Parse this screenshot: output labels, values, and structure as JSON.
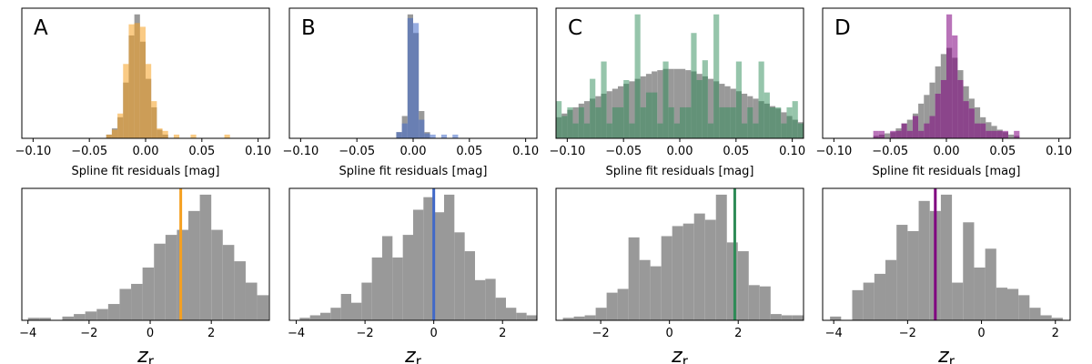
{
  "colors": {
    "background_hist": "#999999",
    "A": "#f5a020",
    "B": "#4169c8",
    "C": "#2e8b57",
    "D": "#800080"
  },
  "chart_data": [
    {
      "type": "histogram",
      "panel": "A",
      "label": "A",
      "xlabel": "Spline fit residuals [mag]",
      "xlim": [
        -0.11,
        0.11
      ],
      "xticks": [
        "−0.10",
        "−0.05",
        "0.00",
        "0.05",
        "0.10"
      ],
      "xtick_values": [
        -0.1,
        -0.05,
        0.0,
        0.05,
        0.1
      ],
      "ylim": [
        0,
        1.05
      ],
      "yticks": "none",
      "bin_start": -0.035,
      "bin_width": 0.005,
      "series": [
        {
          "values": [
            0.03,
            0.08,
            0.17,
            0.45,
            0.83,
            1.0,
            0.78,
            0.48,
            0.25,
            0.07,
            0.03
          ]
        },
        {
          "values": [
            0.03,
            0.07,
            0.2,
            0.6,
            0.92,
            0.93,
            0.9,
            0.6,
            0.3,
            0.08,
            0.06,
            0,
            0.03,
            0,
            0,
            0.03,
            0,
            0,
            0,
            0,
            0,
            0.03
          ]
        }
      ]
    },
    {
      "type": "histogram",
      "panel": "B",
      "label": "B",
      "xlabel": "Spline fit residuals [mag]",
      "xlim": [
        -0.11,
        0.11
      ],
      "xticks": [
        "−0.10",
        "−0.05",
        "0.00",
        "0.05",
        "0.10"
      ],
      "xtick_values": [
        -0.1,
        -0.05,
        0.0,
        0.05,
        0.1
      ],
      "ylim": [
        0,
        1.05
      ],
      "yticks": "none",
      "bin_start": -0.015,
      "bin_width": 0.005,
      "series": [
        {
          "values": [
            0.05,
            0.18,
            1.0,
            0.85,
            0.22,
            0.05
          ]
        },
        {
          "values": [
            0.05,
            0.12,
            0.97,
            0.93,
            0.15,
            0.04,
            0.03,
            0,
            0.03,
            0,
            0.03
          ]
        }
      ]
    },
    {
      "type": "histogram",
      "panel": "C",
      "label": "C",
      "xlabel": "Spline fit residuals [mag]",
      "xlim": [
        -0.11,
        0.11
      ],
      "xticks": [
        "−0.10",
        "−0.05",
        "0.00",
        "0.05",
        "0.10"
      ],
      "xtick_values": [
        -0.1,
        -0.05,
        0.0,
        0.05,
        0.1
      ],
      "ylim": [
        0,
        1.05
      ],
      "yticks": "none",
      "bin_start": -0.11,
      "bin_width": 0.005,
      "series": [
        {
          "values": [
            0.17,
            0.2,
            0.23,
            0.25,
            0.28,
            0.3,
            0.32,
            0.34,
            0.36,
            0.38,
            0.4,
            0.42,
            0.44,
            0.46,
            0.48,
            0.5,
            0.52,
            0.54,
            0.55,
            0.56,
            0.56,
            0.56,
            0.56,
            0.55,
            0.54,
            0.52,
            0.5,
            0.48,
            0.46,
            0.44,
            0.42,
            0.4,
            0.38,
            0.36,
            0.34,
            0.32,
            0.3,
            0.28,
            0.26,
            0.24,
            0.21,
            0.18,
            0.15,
            0.13
          ]
        },
        {
          "values": [
            0.3,
            0.18,
            0.25,
            0.12,
            0.25,
            0.12,
            0.48,
            0.25,
            0.62,
            0.12,
            0.25,
            0.25,
            0.47,
            0.12,
            1.0,
            0.25,
            0.37,
            0.37,
            0.12,
            0.62,
            0.25,
            0.12,
            0.25,
            0.25,
            0.85,
            0.47,
            0.63,
            0.12,
            1.0,
            0.25,
            0.25,
            0.25,
            0.62,
            0.12,
            0.25,
            0.12,
            0.62,
            0.37,
            0.25,
            0.25,
            0.12,
            0.25,
            0.3,
            0.12
          ]
        }
      ]
    },
    {
      "type": "histogram",
      "panel": "D",
      "label": "D",
      "xlabel": "Spline fit residuals [mag]",
      "xlim": [
        -0.11,
        0.11
      ],
      "xticks": [
        "−0.10",
        "−0.05",
        "0.00",
        "0.05",
        "0.10"
      ],
      "xtick_values": [
        -0.1,
        -0.05,
        0.0,
        0.05,
        0.1
      ],
      "ylim": [
        0,
        1.05
      ],
      "yticks": "none",
      "bin_start": -0.065,
      "bin_width": 0.005,
      "series": [
        {
          "values": [
            0.02,
            0.03,
            0.04,
            0.05,
            0.08,
            0.12,
            0.15,
            0.2,
            0.28,
            0.35,
            0.45,
            0.58,
            0.68,
            0.73,
            0.65,
            0.55,
            0.42,
            0.32,
            0.25,
            0.17,
            0.13,
            0.1,
            0.07,
            0.05,
            0.03,
            0.02
          ]
        },
        {
          "values": [
            0.06,
            0.06,
            0,
            0.06,
            0.06,
            0.12,
            0.06,
            0.18,
            0.06,
            0.12,
            0.18,
            0.36,
            0.47,
            1.0,
            0.83,
            0.47,
            0.3,
            0.24,
            0.12,
            0.12,
            0.06,
            0.06,
            0.06,
            0.06,
            0,
            0.06
          ]
        }
      ]
    },
    {
      "type": "histogram",
      "panel": "A-z",
      "xlabel": "z_r",
      "xlim": [
        -4.2,
        3.9
      ],
      "xticks": [
        "−4",
        "−2",
        "0",
        "2"
      ],
      "xtick_values": [
        -4,
        -2,
        0,
        2
      ],
      "ylim": [
        0,
        1.05
      ],
      "yticks": "none",
      "bin_start": -4.0,
      "bin_width": 0.375,
      "series": [
        {
          "values": [
            0.02,
            0.02,
            0,
            0.03,
            0.05,
            0.07,
            0.09,
            0.13,
            0.25,
            0.29,
            0.42,
            0.61,
            0.68,
            0.72,
            0.87,
            1.0,
            0.72,
            0.6,
            0.47,
            0.3,
            0.2
          ]
        }
      ],
      "marker_value": 1.0
    },
    {
      "type": "histogram",
      "panel": "B-z",
      "xlabel": "z_r",
      "xlim": [
        -4.2,
        3.0
      ],
      "xticks": [
        "−4",
        "−2",
        "0",
        "2"
      ],
      "xtick_values": [
        -4,
        -2,
        0,
        2
      ],
      "ylim": [
        0,
        1.05
      ],
      "yticks": "none",
      "bin_start": -3.9,
      "bin_width": 0.3,
      "series": [
        {
          "values": [
            0.02,
            0.04,
            0.06,
            0.1,
            0.21,
            0.14,
            0.3,
            0.5,
            0.67,
            0.5,
            0.68,
            0.88,
            0.98,
            0.86,
            1.0,
            0.7,
            0.55,
            0.32,
            0.33,
            0.18,
            0.1,
            0.06,
            0.04
          ]
        }
      ],
      "marker_value": 0.0
    },
    {
      "type": "histogram",
      "panel": "C-z",
      "xlabel": "z_r",
      "xlim": [
        -3.3,
        3.9
      ],
      "xticks": [
        "−2",
        "0",
        "2"
      ],
      "xtick_values": [
        -2,
        0,
        2
      ],
      "ylim": [
        0,
        1.05
      ],
      "yticks": "none",
      "bin_start": -3.1,
      "bin_width": 0.318,
      "series": [
        {
          "values": [
            0.02,
            0.03,
            0.04,
            0.1,
            0.22,
            0.25,
            0.66,
            0.48,
            0.43,
            0.67,
            0.75,
            0.77,
            0.85,
            0.8,
            1.0,
            0.62,
            0.55,
            0.28,
            0.27,
            0.05,
            0.04,
            0.04
          ]
        }
      ],
      "marker_value": 1.9
    },
    {
      "type": "histogram",
      "panel": "D-z",
      "xlabel": "z_r",
      "xlim": [
        -4.3,
        2.4
      ],
      "xticks": [
        "−4",
        "−2",
        "0",
        "2"
      ],
      "xtick_values": [
        -4,
        -2,
        0,
        2
      ],
      "ylim": [
        0,
        1.05
      ],
      "yticks": "none",
      "bin_start": -4.1,
      "bin_width": 0.3,
      "series": [
        {
          "values": [
            0.03,
            0,
            0.24,
            0.3,
            0.37,
            0.48,
            0.76,
            0.71,
            0.95,
            0.87,
            1.0,
            0.3,
            0.78,
            0.42,
            0.57,
            0.26,
            0.25,
            0.2,
            0.1,
            0.04,
            0.02
          ]
        }
      ],
      "marker_value": -1.25
    }
  ]
}
